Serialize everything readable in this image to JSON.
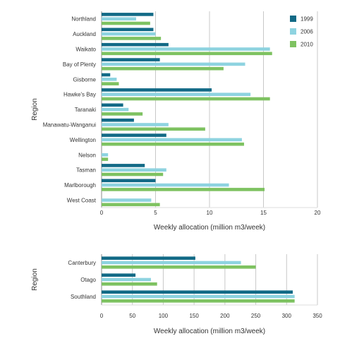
{
  "chart_data": [
    {
      "type": "bar",
      "orientation": "horizontal",
      "categories": [
        "Northland",
        "Auckland",
        "Waikato",
        "Bay of Plenty",
        "Gisborne",
        "Hawke's Bay",
        "Taranaki",
        "Manawatu-Wanganui",
        "Wellington",
        "Nelson",
        "Tasman",
        "Marlborough",
        "West Coast"
      ],
      "series": [
        {
          "name": "1999",
          "color": "#126a86",
          "values": [
            4.8,
            4.8,
            6.2,
            5.4,
            0.8,
            10.2,
            2.0,
            3.0,
            6.0,
            0,
            4.0,
            5.0,
            0
          ]
        },
        {
          "name": "2006",
          "color": "#8ed3e0",
          "values": [
            3.2,
            5.0,
            15.6,
            13.3,
            1.4,
            13.8,
            2.5,
            6.2,
            13.0,
            0.6,
            6.0,
            11.8,
            4.6
          ]
        },
        {
          "name": "2010",
          "color": "#7ec261",
          "values": [
            4.5,
            5.5,
            15.8,
            11.3,
            1.6,
            15.6,
            3.8,
            9.6,
            13.2,
            0.6,
            5.7,
            15.1,
            5.4
          ]
        }
      ],
      "xlabel": "Weekly allocation (million m3/week)",
      "ylabel": "Region",
      "xlim": [
        0,
        20
      ],
      "xticks": [
        0,
        5,
        10,
        15,
        20
      ],
      "grid": true,
      "legend": {
        "position": "top-right",
        "entries": [
          "1999",
          "2006",
          "2010"
        ]
      }
    },
    {
      "type": "bar",
      "orientation": "horizontal",
      "categories": [
        "Canterbury",
        "Otago",
        "Southland"
      ],
      "series": [
        {
          "name": "1999",
          "color": "#126a86",
          "values": [
            152,
            55,
            310
          ]
        },
        {
          "name": "2006",
          "color": "#8ed3e0",
          "values": [
            226,
            80,
            313
          ]
        },
        {
          "name": "2010",
          "color": "#7ec261",
          "values": [
            250,
            90,
            313
          ]
        }
      ],
      "xlabel": "Weekly allocation (million m3/week)",
      "ylabel": "Region",
      "xlim": [
        0,
        350
      ],
      "xticks": [
        0,
        50,
        100,
        150,
        200,
        250,
        300,
        350
      ],
      "grid": true
    }
  ]
}
